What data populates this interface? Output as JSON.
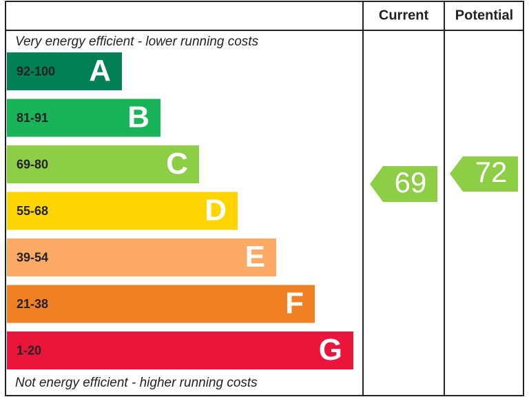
{
  "header": {
    "current": "Current",
    "potential": "Potential"
  },
  "top_note": "Very energy efficient - lower running costs",
  "bottom_note": "Not energy efficient - higher running costs",
  "bands": [
    {
      "range": "92-100",
      "letter": "A",
      "color": "#008054"
    },
    {
      "range": "81-91",
      "letter": "B",
      "color": "#19b459"
    },
    {
      "range": "69-80",
      "letter": "C",
      "color": "#8dce46"
    },
    {
      "range": "55-68",
      "letter": "D",
      "color": "#ffd500"
    },
    {
      "range": "39-54",
      "letter": "E",
      "color": "#fcaa65"
    },
    {
      "range": "21-38",
      "letter": "F",
      "color": "#ef8023"
    },
    {
      "range": "1-20",
      "letter": "G",
      "color": "#e9153b"
    }
  ],
  "current": {
    "value": 69,
    "color": "#8dce46"
  },
  "potential": {
    "value": 72,
    "color": "#8dce46"
  }
}
